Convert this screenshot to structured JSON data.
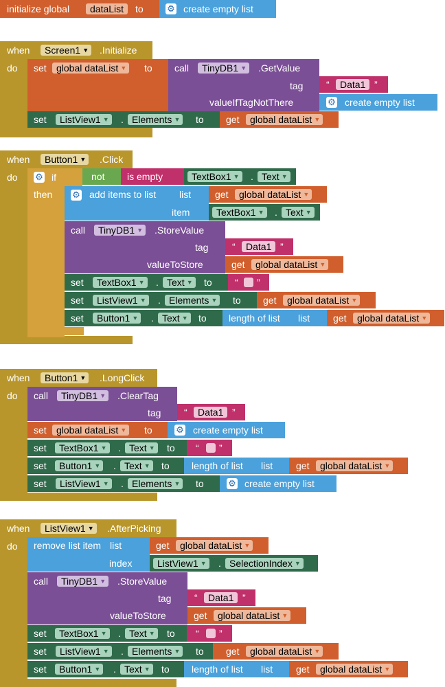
{
  "kw": {
    "initialize_global": "initialize global",
    "to": "to",
    "when": "when",
    "do": "do",
    "set": "set",
    "call": "call",
    "get": "get",
    "if": "if",
    "then": "then",
    "not": "not",
    "is_empty": "is empty",
    "tag": "tag",
    "item": "item",
    "list": "list",
    "index": "index",
    "value_to_store": "valueToStore",
    "value_if_tag_not_there": "valueIfTagNotThere",
    "create_empty_list": "create empty list",
    "add_items_to_list": "add items to list",
    "remove_list_item": "remove list item",
    "length_of_list": "length of list",
    "dot": ".",
    "open_quote": "“",
    "close_quote": "”"
  },
  "names": {
    "var": "dataList",
    "global_var": "global dataList",
    "screen": "Screen1",
    "tinydb": "TinyDB1",
    "listview": "ListView1",
    "textbox": "TextBox1",
    "button": "Button1",
    "tag_value": "Data1"
  },
  "events": {
    "initialize": ".Initialize",
    "click": ".Click",
    "long_click": ".LongClick",
    "after_picking": ".AfterPicking"
  },
  "methods": {
    "get_value": ".GetValue",
    "store_value": ".StoreValue",
    "clear_tag": ".ClearTag"
  },
  "props": {
    "elements": "Elements",
    "text": "Text",
    "selection_index": "SelectionIndex"
  }
}
